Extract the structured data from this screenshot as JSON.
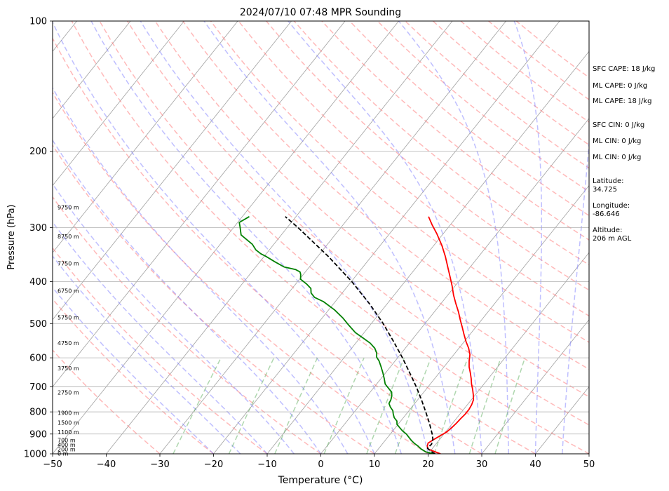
{
  "chart_data": {
    "type": "line",
    "title": "2024/07/10 07:48 MPR Sounding",
    "xlabel": "Temperature (°C)",
    "ylabel": "Pressure (hPa)",
    "xlim": [
      -50,
      50
    ],
    "ylim_pressure": [
      1000,
      100
    ],
    "y_scale": "log",
    "skew": "skew-T",
    "x_ticks": [
      -50,
      -40,
      -30,
      -20,
      -10,
      0,
      10,
      20,
      30,
      40,
      50
    ],
    "y_ticks": [
      1000,
      900,
      800,
      700,
      600,
      500,
      400,
      300,
      200,
      100
    ],
    "grid": true,
    "series": [
      {
        "color": "#ff0000",
        "style": "solid",
        "points": [
          [
            1000,
            22.3
          ],
          [
            985,
            20.5
          ],
          [
            975,
            19.3
          ],
          [
            960,
            18.7
          ],
          [
            945,
            18.4
          ],
          [
            930,
            18.8
          ],
          [
            910,
            19.5
          ],
          [
            890,
            20.2
          ],
          [
            870,
            20.5
          ],
          [
            850,
            20.7
          ],
          [
            830,
            20.8
          ],
          [
            810,
            21.0
          ],
          [
            790,
            21.0
          ],
          [
            770,
            20.8
          ],
          [
            750,
            20.4
          ],
          [
            730,
            19.6
          ],
          [
            710,
            18.7
          ],
          [
            690,
            17.7
          ],
          [
            670,
            16.8
          ],
          [
            650,
            15.8
          ],
          [
            630,
            14.7
          ],
          [
            610,
            13.8
          ],
          [
            590,
            13.0
          ],
          [
            570,
            11.8
          ],
          [
            550,
            10.3
          ],
          [
            530,
            8.9
          ],
          [
            510,
            7.5
          ],
          [
            490,
            6.0
          ],
          [
            470,
            4.5
          ],
          [
            450,
            2.8
          ],
          [
            430,
            1.1
          ],
          [
            410,
            -0.5
          ],
          [
            390,
            -2.3
          ],
          [
            370,
            -4.2
          ],
          [
            350,
            -6.2
          ],
          [
            330,
            -8.5
          ],
          [
            310,
            -11.2
          ],
          [
            295,
            -13.5
          ],
          [
            283,
            -15.3
          ]
        ]
      },
      {
        "color": "#008000",
        "style": "solid",
        "points": [
          [
            1000,
            21.0
          ],
          [
            990,
            19.3
          ],
          [
            975,
            18.0
          ],
          [
            960,
            17.0
          ],
          [
            945,
            15.8
          ],
          [
            930,
            14.8
          ],
          [
            915,
            13.9
          ],
          [
            900,
            13.0
          ],
          [
            885,
            11.8
          ],
          [
            870,
            10.8
          ],
          [
            855,
            9.8
          ],
          [
            840,
            9.3
          ],
          [
            825,
            8.3
          ],
          [
            810,
            7.6
          ],
          [
            795,
            7.0
          ],
          [
            780,
            6.0
          ],
          [
            765,
            5.2
          ],
          [
            750,
            5.0
          ],
          [
            735,
            4.6
          ],
          [
            720,
            4.0
          ],
          [
            705,
            2.8
          ],
          [
            690,
            1.6
          ],
          [
            670,
            0.6
          ],
          [
            650,
            -0.5
          ],
          [
            630,
            -1.7
          ],
          [
            610,
            -3.0
          ],
          [
            598,
            -4.0
          ],
          [
            585,
            -4.6
          ],
          [
            570,
            -5.7
          ],
          [
            555,
            -7.3
          ],
          [
            540,
            -9.4
          ],
          [
            525,
            -11.6
          ],
          [
            505,
            -13.9
          ],
          [
            485,
            -16.2
          ],
          [
            465,
            -18.9
          ],
          [
            445,
            -22.2
          ],
          [
            435,
            -24.5
          ],
          [
            425,
            -25.8
          ],
          [
            415,
            -26.5
          ],
          [
            405,
            -28.0
          ],
          [
            395,
            -29.8
          ],
          [
            385,
            -30.5
          ],
          [
            380,
            -31.0
          ],
          [
            375,
            -32.2
          ],
          [
            370,
            -34.7
          ],
          [
            360,
            -37.2
          ],
          [
            350,
            -39.6
          ],
          [
            345,
            -41.0
          ],
          [
            338,
            -42.5
          ],
          [
            328,
            -44.0
          ],
          [
            312,
            -47.5
          ],
          [
            298,
            -49.0
          ],
          [
            292,
            -49.7
          ],
          [
            283,
            -48.7
          ]
        ]
      },
      {
        "color": "#000000",
        "style": "dashed",
        "points": [
          [
            1000,
            21.3
          ],
          [
            985,
            20.0
          ],
          [
            970,
            19.0
          ],
          [
            950,
            19.2
          ],
          [
            925,
            18.7
          ],
          [
            900,
            17.8
          ],
          [
            850,
            15.7
          ],
          [
            800,
            13.3
          ],
          [
            750,
            10.7
          ],
          [
            700,
            7.8
          ],
          [
            650,
            4.5
          ],
          [
            600,
            0.9
          ],
          [
            550,
            -3.2
          ],
          [
            500,
            -7.8
          ],
          [
            450,
            -13.3
          ],
          [
            400,
            -19.9
          ],
          [
            350,
            -28.0
          ],
          [
            300,
            -38.0
          ],
          [
            283,
            -42.0
          ]
        ]
      }
    ],
    "height_labels": [
      {
        "p": 1000,
        "label": "0 m"
      },
      {
        "p": 977,
        "label": "200 m"
      },
      {
        "p": 954,
        "label": "400 m"
      },
      {
        "p": 931,
        "label": "700 m"
      },
      {
        "p": 893,
        "label": "1100 m"
      },
      {
        "p": 848,
        "label": "1500 m"
      },
      {
        "p": 806,
        "label": "1900 m"
      },
      {
        "p": 723,
        "label": "2750 m"
      },
      {
        "p": 636,
        "label": "3750 m"
      },
      {
        "p": 556,
        "label": "4750 m"
      },
      {
        "p": 485,
        "label": "5750 m"
      },
      {
        "p": 421,
        "label": "6750 m"
      },
      {
        "p": 364,
        "label": "7750 m"
      },
      {
        "p": 315,
        "label": "8750 m"
      },
      {
        "p": 270,
        "label": "9750 m"
      }
    ],
    "background": {
      "isotherm_color": "#a0a0a0",
      "dry_adiabat_color": "#ff7f7f",
      "moist_adiabat_color": "#7f7fff",
      "mixing_ratio_color": "#5fb05f"
    }
  },
  "side": {
    "sfc_cape": "SFC CAPE: 18 J/kg",
    "ml_cape_1": "ML CAPE: 0 J/kg",
    "ml_cape_2": "ML CAPE: 18 J/kg",
    "sfc_cin": "SFC CIN: 0 J/kg",
    "ml_cin_1": "ML CIN: 0 J/kg",
    "ml_cin_2": "ML CIN: 0 J/kg",
    "latitude": "Latitude:\n34.725",
    "longitude": "Longitude:\n-86.646",
    "altitude": "Altitude:\n206 m AGL"
  }
}
